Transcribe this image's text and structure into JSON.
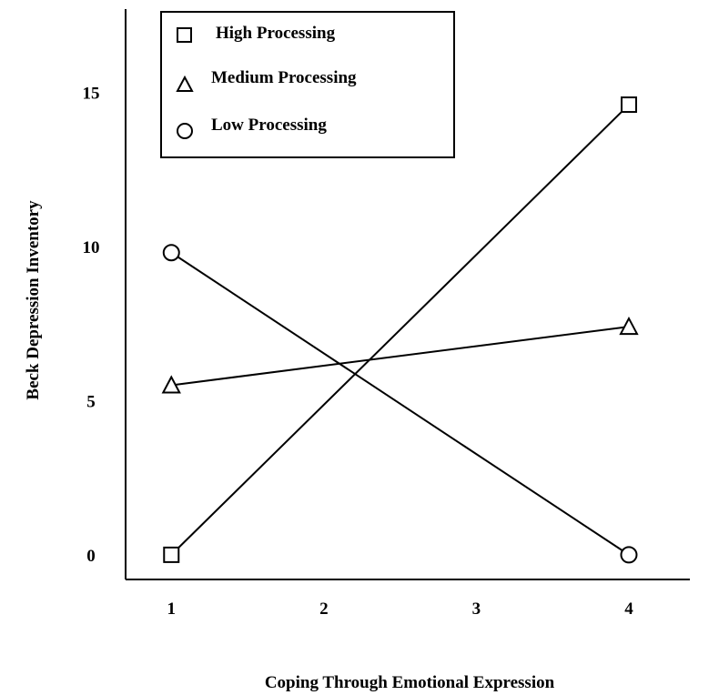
{
  "chart_data": {
    "type": "line",
    "title": "",
    "xlabel": "Coping Through Emotional Expression",
    "ylabel": "Beck Depression Inventory",
    "x_ticks": [
      1,
      2,
      3,
      4
    ],
    "y_ticks": [
      0,
      5,
      10,
      15
    ],
    "xlim": [
      0.7,
      4.4
    ],
    "ylim": [
      -0.8,
      17.7
    ],
    "grid": false,
    "legend_position": "top-left",
    "series": [
      {
        "name": "High Processing",
        "marker": "square",
        "x": [
          1,
          4
        ],
        "y": [
          0,
          14.6
        ]
      },
      {
        "name": "Medium Processing",
        "marker": "triangle",
        "x": [
          1,
          4
        ],
        "y": [
          5.5,
          7.4
        ]
      },
      {
        "name": "Low Processing",
        "marker": "circle",
        "x": [
          1,
          4
        ],
        "y": [
          9.8,
          0
        ]
      }
    ]
  }
}
